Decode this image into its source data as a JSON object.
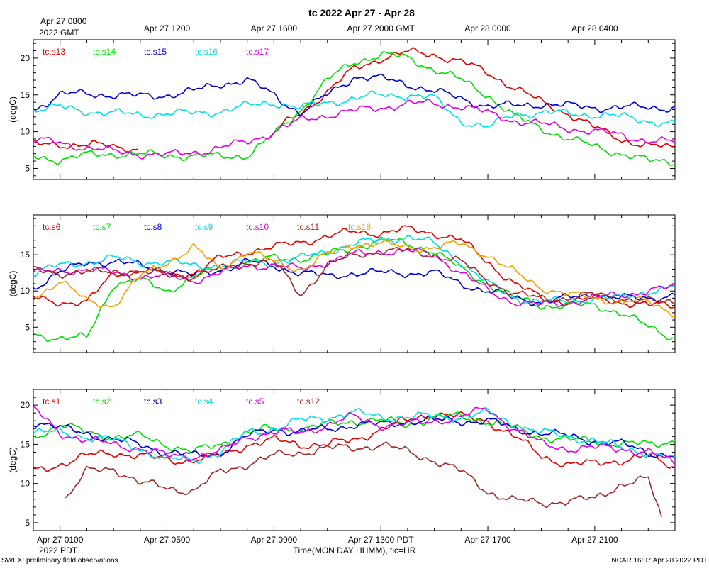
{
  "title": "tc 2022 Apr 27 - Apr 28",
  "top_axis": {
    "ticks": [
      "Apr 27 0800",
      "Apr 27 1200",
      "Apr 27 1600",
      "Apr 27 2000 GMT",
      "Apr 28 0000",
      "Apr 28 0400"
    ],
    "year_label": "2022 GMT"
  },
  "bottom_axis": {
    "ticks": [
      "Apr 27 0100",
      "Apr 27 0500",
      "Apr 27 0900",
      "Apr 27 1300 PDT",
      "Apr 27 1700",
      "Apr 27 2100"
    ],
    "year_label": "2022 PDT",
    "xlabel": "Time(MON DAY HHMM), tic=HR"
  },
  "footer": {
    "left": "SWEX: preliminary field observations",
    "right": "NCAR 16:07 Apr 28 2022 PDT"
  },
  "chart_data": [
    {
      "type": "line",
      "panel": "top",
      "ylabel": "(degC)",
      "xlim_hours_pdt": [
        0,
        24
      ],
      "ylim": [
        3.5,
        22.5
      ],
      "yticks": [
        5,
        10,
        15,
        20
      ],
      "series": [
        {
          "name": "tc.s13",
          "color": "#e00000",
          "x": [
            0,
            1,
            2,
            3,
            4,
            5,
            6,
            7,
            8,
            9,
            10,
            11,
            12,
            13,
            14,
            15,
            16,
            17,
            18,
            19,
            20,
            21,
            22,
            23,
            24
          ],
          "values": [
            8.2,
            8.3,
            8.2,
            8.0,
            7.7,
            null,
            null,
            null,
            null,
            10.0,
            12.5,
            15.5,
            18.5,
            20.0,
            20.8,
            20.5,
            19.5,
            18.0,
            16.0,
            14.0,
            12.5,
            10.5,
            9.0,
            8.0,
            7.8
          ]
        },
        {
          "name": "tc.s14",
          "color": "#00e000",
          "x": [
            0,
            1,
            2,
            3,
            4,
            5,
            6,
            7,
            8,
            9,
            10,
            11,
            12,
            13,
            14,
            15,
            16,
            17,
            18,
            19,
            20,
            21,
            22,
            23,
            24
          ],
          "values": [
            6.6,
            6.2,
            6.8,
            7.0,
            6.9,
            6.8,
            6.7,
            6.6,
            6.8,
            9.5,
            13.0,
            17.0,
            19.5,
            20.5,
            20.0,
            18.5,
            17.0,
            15.0,
            12.0,
            10.5,
            9.0,
            8.0,
            7.0,
            6.0,
            6.0
          ]
        },
        {
          "name": "tc.s15",
          "color": "#0000d0",
          "x": [
            0,
            1,
            2,
            3,
            4,
            5,
            6,
            7,
            8,
            9,
            10,
            11,
            12,
            13,
            14,
            15,
            16,
            17,
            18,
            19,
            20,
            21,
            22,
            23,
            24
          ],
          "values": [
            13.0,
            15.0,
            15.2,
            15.0,
            14.8,
            15.0,
            15.5,
            16.5,
            17.0,
            15.0,
            12.5,
            15.0,
            17.5,
            17.2,
            16.5,
            15.5,
            14.5,
            13.5,
            13.5,
            13.8,
            13.5,
            13.3,
            13.3,
            13.3,
            13.3
          ]
        },
        {
          "name": "tc.s16",
          "color": "#00e0e0",
          "x": [
            0,
            1,
            2,
            3,
            4,
            5,
            6,
            7,
            8,
            9,
            10,
            11,
            12,
            13,
            14,
            15,
            16,
            17,
            18,
            19,
            20,
            21,
            22,
            23,
            24
          ],
          "values": [
            13.0,
            13.3,
            12.8,
            12.5,
            12.3,
            12.5,
            12.5,
            12.8,
            13.5,
            14.0,
            13.2,
            14.0,
            14.5,
            15.0,
            15.0,
            14.5,
            11.5,
            10.5,
            12.5,
            12.5,
            12.5,
            12.3,
            12.0,
            11.5,
            11.0
          ]
        },
        {
          "name": "tc.s17",
          "color": "#e000e0",
          "x": [
            0,
            1,
            2,
            3,
            4,
            5,
            6,
            7,
            8,
            9,
            10,
            11,
            12,
            13,
            14,
            15,
            16,
            17,
            18,
            19,
            20,
            21,
            22,
            23,
            24
          ],
          "values": [
            8.8,
            8.5,
            7.8,
            7.3,
            7.0,
            6.8,
            7.2,
            7.8,
            8.6,
            10.0,
            11.5,
            12.3,
            12.8,
            13.3,
            13.8,
            13.8,
            13.5,
            12.5,
            11.5,
            11.0,
            10.5,
            10.0,
            9.5,
            8.8,
            8.5
          ]
        }
      ]
    },
    {
      "type": "line",
      "panel": "middle",
      "ylabel": "(degC)",
      "xlim_hours_pdt": [
        0,
        24
      ],
      "ylim": [
        1.5,
        20.5
      ],
      "yticks": [
        5,
        10,
        15
      ],
      "series": [
        {
          "name": "tc.s6",
          "color": "#e00000",
          "x": [
            0,
            1,
            2,
            3,
            4,
            5,
            6,
            7,
            8,
            9,
            10,
            11,
            12,
            13,
            14,
            15,
            16,
            17,
            18,
            19,
            20,
            21,
            22,
            23,
            24
          ],
          "values": [
            9.0,
            8.5,
            8.3,
            12.5,
            12.8,
            12.3,
            12.5,
            14.5,
            15.5,
            16.0,
            16.8,
            17.5,
            18.2,
            18.0,
            18.5,
            18.0,
            17.0,
            14.0,
            11.0,
            9.0,
            8.5,
            9.0,
            8.5,
            8.0,
            8.0
          ]
        },
        {
          "name": "tc.s7",
          "color": "#00e000",
          "x": [
            0,
            1,
            2,
            3,
            4,
            5,
            6,
            7,
            8,
            9,
            10,
            11,
            12,
            13,
            14,
            15,
            16,
            17,
            18,
            19,
            20,
            21,
            22,
            23,
            24
          ],
          "values": [
            4.0,
            3.5,
            3.5,
            11.0,
            11.5,
            10.0,
            12.0,
            13.0,
            14.0,
            14.5,
            14.5,
            15.0,
            16.0,
            17.0,
            16.5,
            15.5,
            13.0,
            11.0,
            9.0,
            8.0,
            8.0,
            8.0,
            7.0,
            5.0,
            3.5
          ]
        },
        {
          "name": "tc.s8",
          "color": "#0000d0",
          "x": [
            0,
            1,
            2,
            3,
            4,
            5,
            6,
            7,
            8,
            9,
            10,
            11,
            12,
            13,
            14,
            15,
            16,
            17,
            18,
            19,
            20,
            21,
            22,
            23,
            24
          ],
          "values": [
            10.5,
            12.5,
            14.0,
            14.0,
            13.5,
            13.0,
            12.0,
            13.0,
            14.0,
            13.5,
            12.5,
            12.0,
            12.5,
            12.5,
            12.5,
            12.5,
            11.0,
            10.0,
            9.0,
            8.5,
            9.0,
            9.5,
            9.0,
            9.0,
            9.5
          ]
        },
        {
          "name": "tc.s9",
          "color": "#00e0e0",
          "x": [
            0,
            1,
            2,
            3,
            4,
            5,
            6,
            7,
            8,
            9,
            10,
            11,
            12,
            13,
            14,
            15,
            16,
            17,
            18,
            19,
            20,
            21,
            22,
            23,
            24
          ],
          "values": [
            12.5,
            13.5,
            14.0,
            14.5,
            14.0,
            14.0,
            13.5,
            13.5,
            14.0,
            14.0,
            14.5,
            15.5,
            16.5,
            17.0,
            17.5,
            16.5,
            14.0,
            11.0,
            9.0,
            8.5,
            8.5,
            9.0,
            9.0,
            10.0,
            10.5
          ]
        },
        {
          "name": "tc.s10",
          "color": "#e000e0",
          "x": [
            0,
            1,
            2,
            3,
            4,
            5,
            6,
            7,
            8,
            9,
            10,
            11,
            12,
            13,
            14,
            15,
            16,
            17,
            18,
            19,
            20,
            21,
            22,
            23,
            24
          ],
          "values": [
            12.5,
            12.8,
            13.0,
            12.5,
            12.0,
            12.0,
            11.5,
            12.5,
            13.5,
            13.5,
            13.0,
            14.0,
            15.0,
            15.5,
            15.5,
            15.0,
            12.5,
            10.0,
            8.5,
            8.0,
            8.5,
            9.0,
            9.5,
            10.0,
            10.5
          ]
        },
        {
          "name": "tc.s11",
          "color": "#a02828",
          "x": [
            0,
            1,
            2,
            3,
            4,
            5,
            6,
            7,
            8,
            9,
            10,
            11,
            12,
            13,
            14,
            15,
            16,
            17,
            18,
            19,
            20,
            21,
            22,
            23,
            24
          ],
          "values": [
            13.0,
            12.5,
            12.5,
            12.8,
            12.5,
            12.3,
            12.0,
            13.0,
            14.0,
            14.0,
            9.5,
            13.5,
            15.0,
            15.5,
            15.5,
            15.0,
            14.0,
            11.5,
            9.5,
            9.0,
            9.0,
            9.5,
            9.0,
            8.5,
            8.5
          ]
        },
        {
          "name": "tc.s18",
          "color": "#f0a000",
          "x": [
            0,
            1,
            2,
            3,
            4,
            5,
            6,
            7,
            8,
            9,
            10,
            11,
            12,
            13,
            14,
            15,
            16,
            17,
            18,
            19,
            20,
            21,
            22,
            23,
            24
          ],
          "values": [
            9.0,
            11.5,
            8.5,
            8.0,
            12.0,
            14.0,
            16.0,
            13.0,
            15.5,
            14.0,
            13.0,
            15.0,
            16.5,
            16.5,
            16.0,
            16.0,
            16.5,
            15.0,
            12.5,
            10.5,
            9.5,
            9.0,
            8.5,
            8.5,
            7.0
          ]
        }
      ]
    },
    {
      "type": "line",
      "panel": "bottom",
      "ylabel": "(degC)",
      "xlim_hours_pdt": [
        0,
        24
      ],
      "ylim": [
        4.0,
        22.0
      ],
      "yticks": [
        5,
        10,
        15,
        20
      ],
      "series": [
        {
          "name": "tc.s1",
          "color": "#e00000",
          "x": [
            0,
            1,
            2,
            3,
            4,
            5,
            6,
            7,
            8,
            9,
            10,
            11,
            12,
            13,
            14,
            15,
            16,
            17,
            18,
            19,
            20,
            21,
            22,
            23,
            24
          ],
          "values": [
            11.5,
            12.5,
            13.5,
            14.0,
            13.5,
            13.0,
            13.0,
            13.5,
            15.0,
            15.5,
            15.0,
            15.0,
            15.5,
            17.0,
            18.0,
            19.0,
            18.5,
            18.0,
            16.0,
            13.5,
            12.5,
            12.5,
            13.0,
            13.5,
            12.0
          ]
        },
        {
          "name": "tc.s2",
          "color": "#00e000",
          "x": [
            0,
            1,
            2,
            3,
            4,
            5,
            6,
            7,
            8,
            9,
            10,
            11,
            12,
            13,
            14,
            15,
            16,
            17,
            18,
            19,
            20,
            21,
            22,
            23,
            24
          ],
          "values": [
            16.0,
            17.5,
            16.5,
            16.0,
            16.0,
            15.0,
            14.0,
            15.0,
            16.5,
            17.0,
            17.0,
            17.5,
            18.0,
            18.0,
            17.5,
            18.5,
            18.5,
            18.0,
            17.0,
            16.0,
            15.5,
            15.5,
            15.0,
            15.0,
            15.5
          ]
        },
        {
          "name": "tc.s3",
          "color": "#0000d0",
          "x": [
            0,
            1,
            2,
            3,
            4,
            5,
            6,
            7,
            8,
            9,
            10,
            11,
            12,
            13,
            14,
            15,
            16,
            17,
            18,
            19,
            20,
            21,
            22,
            23,
            24
          ],
          "values": [
            18.0,
            17.0,
            16.5,
            15.5,
            15.0,
            14.0,
            13.5,
            14.0,
            16.0,
            17.0,
            16.5,
            17.0,
            17.5,
            17.5,
            18.0,
            18.0,
            18.0,
            18.0,
            17.0,
            16.5,
            16.0,
            15.5,
            15.0,
            14.0,
            13.5
          ]
        },
        {
          "name": "tc.s4",
          "color": "#00e0e0",
          "x": [
            0,
            1,
            2,
            3,
            4,
            5,
            6,
            7,
            8,
            9,
            10,
            11,
            12,
            13,
            14,
            15,
            16,
            17,
            18,
            19,
            20,
            21,
            22,
            23,
            24
          ],
          "values": [
            16.5,
            16.5,
            16.0,
            15.5,
            14.5,
            13.0,
            13.0,
            14.0,
            16.5,
            17.0,
            18.0,
            18.5,
            19.0,
            18.5,
            18.5,
            18.5,
            18.5,
            19.0,
            17.5,
            16.5,
            16.0,
            15.5,
            14.5,
            14.0,
            13.0
          ]
        },
        {
          "name": "tc.s5",
          "color": "#e000e0",
          "x": [
            0,
            1,
            2,
            3,
            4,
            5,
            6,
            7,
            8,
            9,
            10,
            11,
            12,
            13,
            14,
            15,
            16,
            17,
            18,
            19,
            20,
            21,
            22,
            23,
            24
          ],
          "values": [
            19.5,
            16.5,
            15.5,
            15.0,
            14.5,
            13.5,
            13.5,
            14.0,
            16.0,
            16.5,
            16.5,
            17.5,
            18.5,
            17.5,
            17.5,
            18.0,
            18.5,
            19.5,
            17.0,
            15.0,
            14.5,
            14.5,
            14.5,
            14.0,
            12.5
          ]
        },
        {
          "name": "tc.s12",
          "color": "#a02828",
          "x": [
            1.2,
            2,
            3,
            4,
            5,
            6,
            7,
            8,
            9,
            10,
            11,
            12,
            13,
            14,
            15,
            16,
            17,
            18,
            19,
            20,
            21,
            22,
            23,
            23.5
          ],
          "values": [
            8.0,
            11.5,
            12.0,
            10.0,
            9.5,
            9.0,
            11.5,
            12.5,
            13.5,
            14.0,
            14.5,
            14.5,
            15.0,
            14.0,
            13.0,
            11.5,
            9.0,
            7.8,
            7.5,
            7.8,
            8.0,
            10.0,
            10.5,
            5.5
          ]
        }
      ]
    }
  ]
}
